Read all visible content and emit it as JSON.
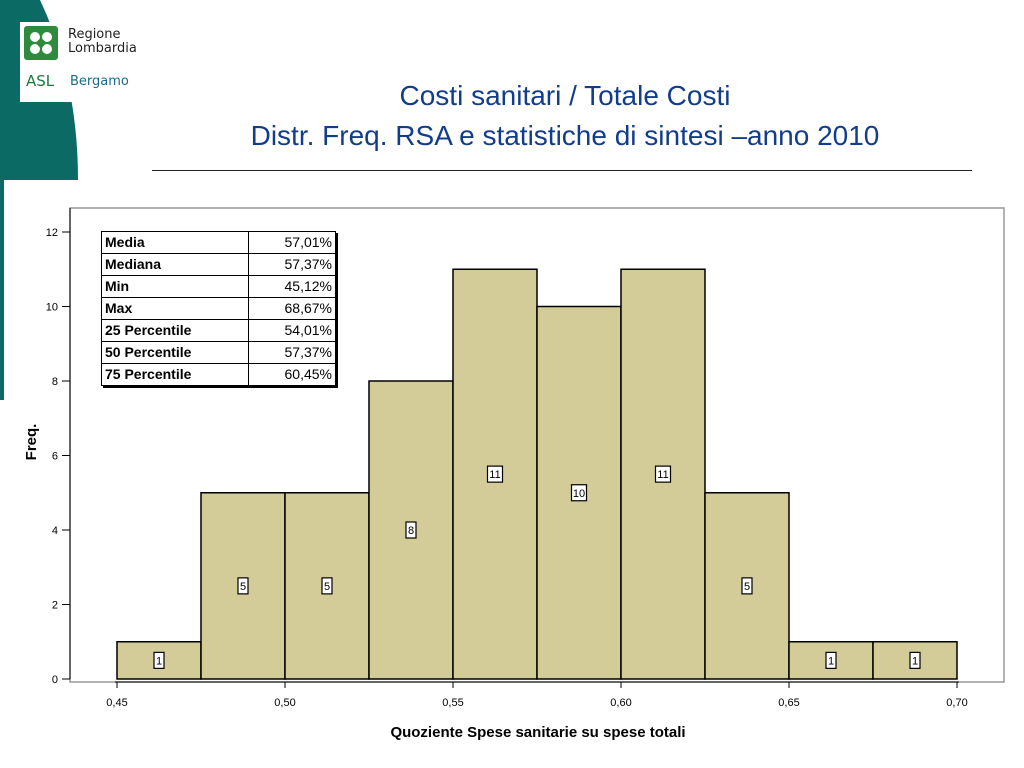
{
  "header": {
    "logo_line1": "Regione",
    "logo_line2": "Lombardia",
    "logo_asl": "ASL",
    "logo_city": "Bergamo",
    "title_line1": "Costi sanitari / Totale Costi",
    "title_line2": "Distr. Freq. RSA e statistiche di sintesi –anno 2010"
  },
  "colors": {
    "band": "#0b6b64",
    "bar_fill": "#d4cc98",
    "title": "#123c8c",
    "plot_border": "#999999"
  },
  "stats": [
    {
      "label": "Media",
      "value": "57,01%"
    },
    {
      "label": "Mediana",
      "value": "57,37%"
    },
    {
      "label": "Min",
      "value": "45,12%"
    },
    {
      "label": "Max",
      "value": "68,67%"
    },
    {
      "label": "25 Percentile",
      "value": "54,01%"
    },
    {
      "label": "50 Percentile",
      "value": "57,37%"
    },
    {
      "label": "75 Percentile",
      "value": "60,45%"
    }
  ],
  "chart_data": {
    "type": "bar",
    "title": "",
    "xlabel": "Quoziente Spese sanitarie su spese totali",
    "ylabel": "Freq.",
    "ylim": [
      0,
      12
    ],
    "xlim": [
      0.45,
      0.7
    ],
    "bins": [
      {
        "x0": 0.45,
        "x1": 0.475,
        "count": 1
      },
      {
        "x0": 0.475,
        "x1": 0.5,
        "count": 5
      },
      {
        "x0": 0.5,
        "x1": 0.525,
        "count": 5
      },
      {
        "x0": 0.525,
        "x1": 0.55,
        "count": 8
      },
      {
        "x0": 0.55,
        "x1": 0.575,
        "count": 11
      },
      {
        "x0": 0.575,
        "x1": 0.6,
        "count": 10
      },
      {
        "x0": 0.6,
        "x1": 0.625,
        "count": 11
      },
      {
        "x0": 0.625,
        "x1": 0.65,
        "count": 5
      },
      {
        "x0": 0.65,
        "x1": 0.675,
        "count": 1
      },
      {
        "x0": 0.675,
        "x1": 0.7,
        "count": 1
      }
    ],
    "x_ticks": [
      {
        "value": 0.45,
        "label": "0,45"
      },
      {
        "value": 0.5,
        "label": "0,50"
      },
      {
        "value": 0.55,
        "label": "0,55"
      },
      {
        "value": 0.6,
        "label": "0,60"
      },
      {
        "value": 0.65,
        "label": "0,65"
      },
      {
        "value": 0.7,
        "label": "0,70"
      }
    ],
    "y_ticks": [
      {
        "value": 0,
        "label": "0"
      },
      {
        "value": 2,
        "label": "2"
      },
      {
        "value": 4,
        "label": "4"
      },
      {
        "value": 6,
        "label": "6"
      },
      {
        "value": 8,
        "label": "8"
      },
      {
        "value": 10,
        "label": "10"
      },
      {
        "value": 12,
        "label": "12"
      }
    ],
    "grid": false,
    "legend": "none"
  }
}
